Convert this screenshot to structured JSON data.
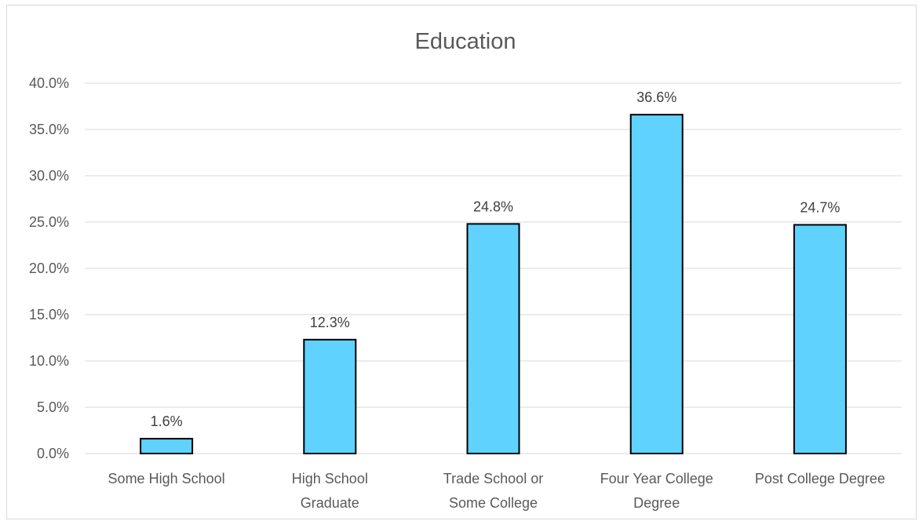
{
  "chart_data": {
    "type": "bar",
    "title": "Education",
    "categories": [
      [
        "Some High School"
      ],
      [
        "High School",
        "Graduate"
      ],
      [
        "Trade School or",
        "Some College"
      ],
      [
        "Four Year College",
        "Degree"
      ],
      [
        "Post College Degree"
      ]
    ],
    "values": [
      1.6,
      12.3,
      24.8,
      36.6,
      24.7
    ],
    "value_labels": [
      "1.6%",
      "12.3%",
      "24.8%",
      "36.6%",
      "24.7%"
    ],
    "yticks": [
      "0.0%",
      "5.0%",
      "10.0%",
      "15.0%",
      "20.0%",
      "25.0%",
      "30.0%",
      "35.0%",
      "40.0%"
    ],
    "ylim": [
      0,
      40
    ],
    "grid": true,
    "bar_color": "#5fd3fe",
    "bar_border_color": "#000000"
  }
}
